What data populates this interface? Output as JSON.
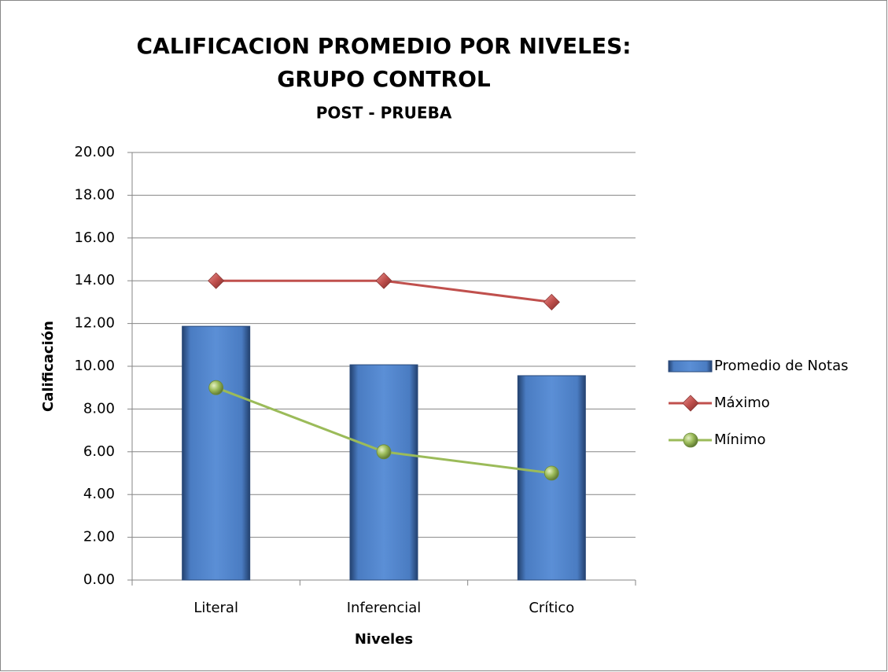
{
  "chart_data": {
    "type": "bar_line",
    "title": [
      "CALIFICACION PROMEDIO POR NIVELES:",
      "GRUPO CONTROL"
    ],
    "subtitle": "POST - PRUEBA",
    "xlabel": "Niveles",
    "ylabel": "Calificación",
    "categories": [
      "Literal",
      "Inferencial",
      "Crítico"
    ],
    "series": [
      {
        "name": "Promedio de Notas",
        "type": "bar",
        "color": "#4f81bd",
        "values": [
          11.87,
          10.07,
          9.56
        ]
      },
      {
        "name": "Máximo",
        "type": "line",
        "marker": "diamond",
        "color": "#c0504d",
        "values": [
          14,
          14,
          13
        ]
      },
      {
        "name": "Mínimo",
        "type": "line",
        "marker": "circle",
        "color": "#9bbb59",
        "values": [
          9,
          6,
          5
        ]
      }
    ],
    "ylim": [
      0,
      20
    ],
    "yticks": [
      {
        "value": 0,
        "label": "0.00"
      },
      {
        "value": 2,
        "label": "2.00"
      },
      {
        "value": 4,
        "label": "4.00"
      },
      {
        "value": 6,
        "label": "6.00"
      },
      {
        "value": 8,
        "label": "8.00"
      },
      {
        "value": 10,
        "label": "10.00"
      },
      {
        "value": 12,
        "label": "12.00"
      },
      {
        "value": 14,
        "label": "14.00"
      },
      {
        "value": 16,
        "label": "16.00"
      },
      {
        "value": 18,
        "label": "18.00"
      },
      {
        "value": 20,
        "label": "20.00"
      }
    ],
    "grid": true,
    "legend": "right"
  }
}
